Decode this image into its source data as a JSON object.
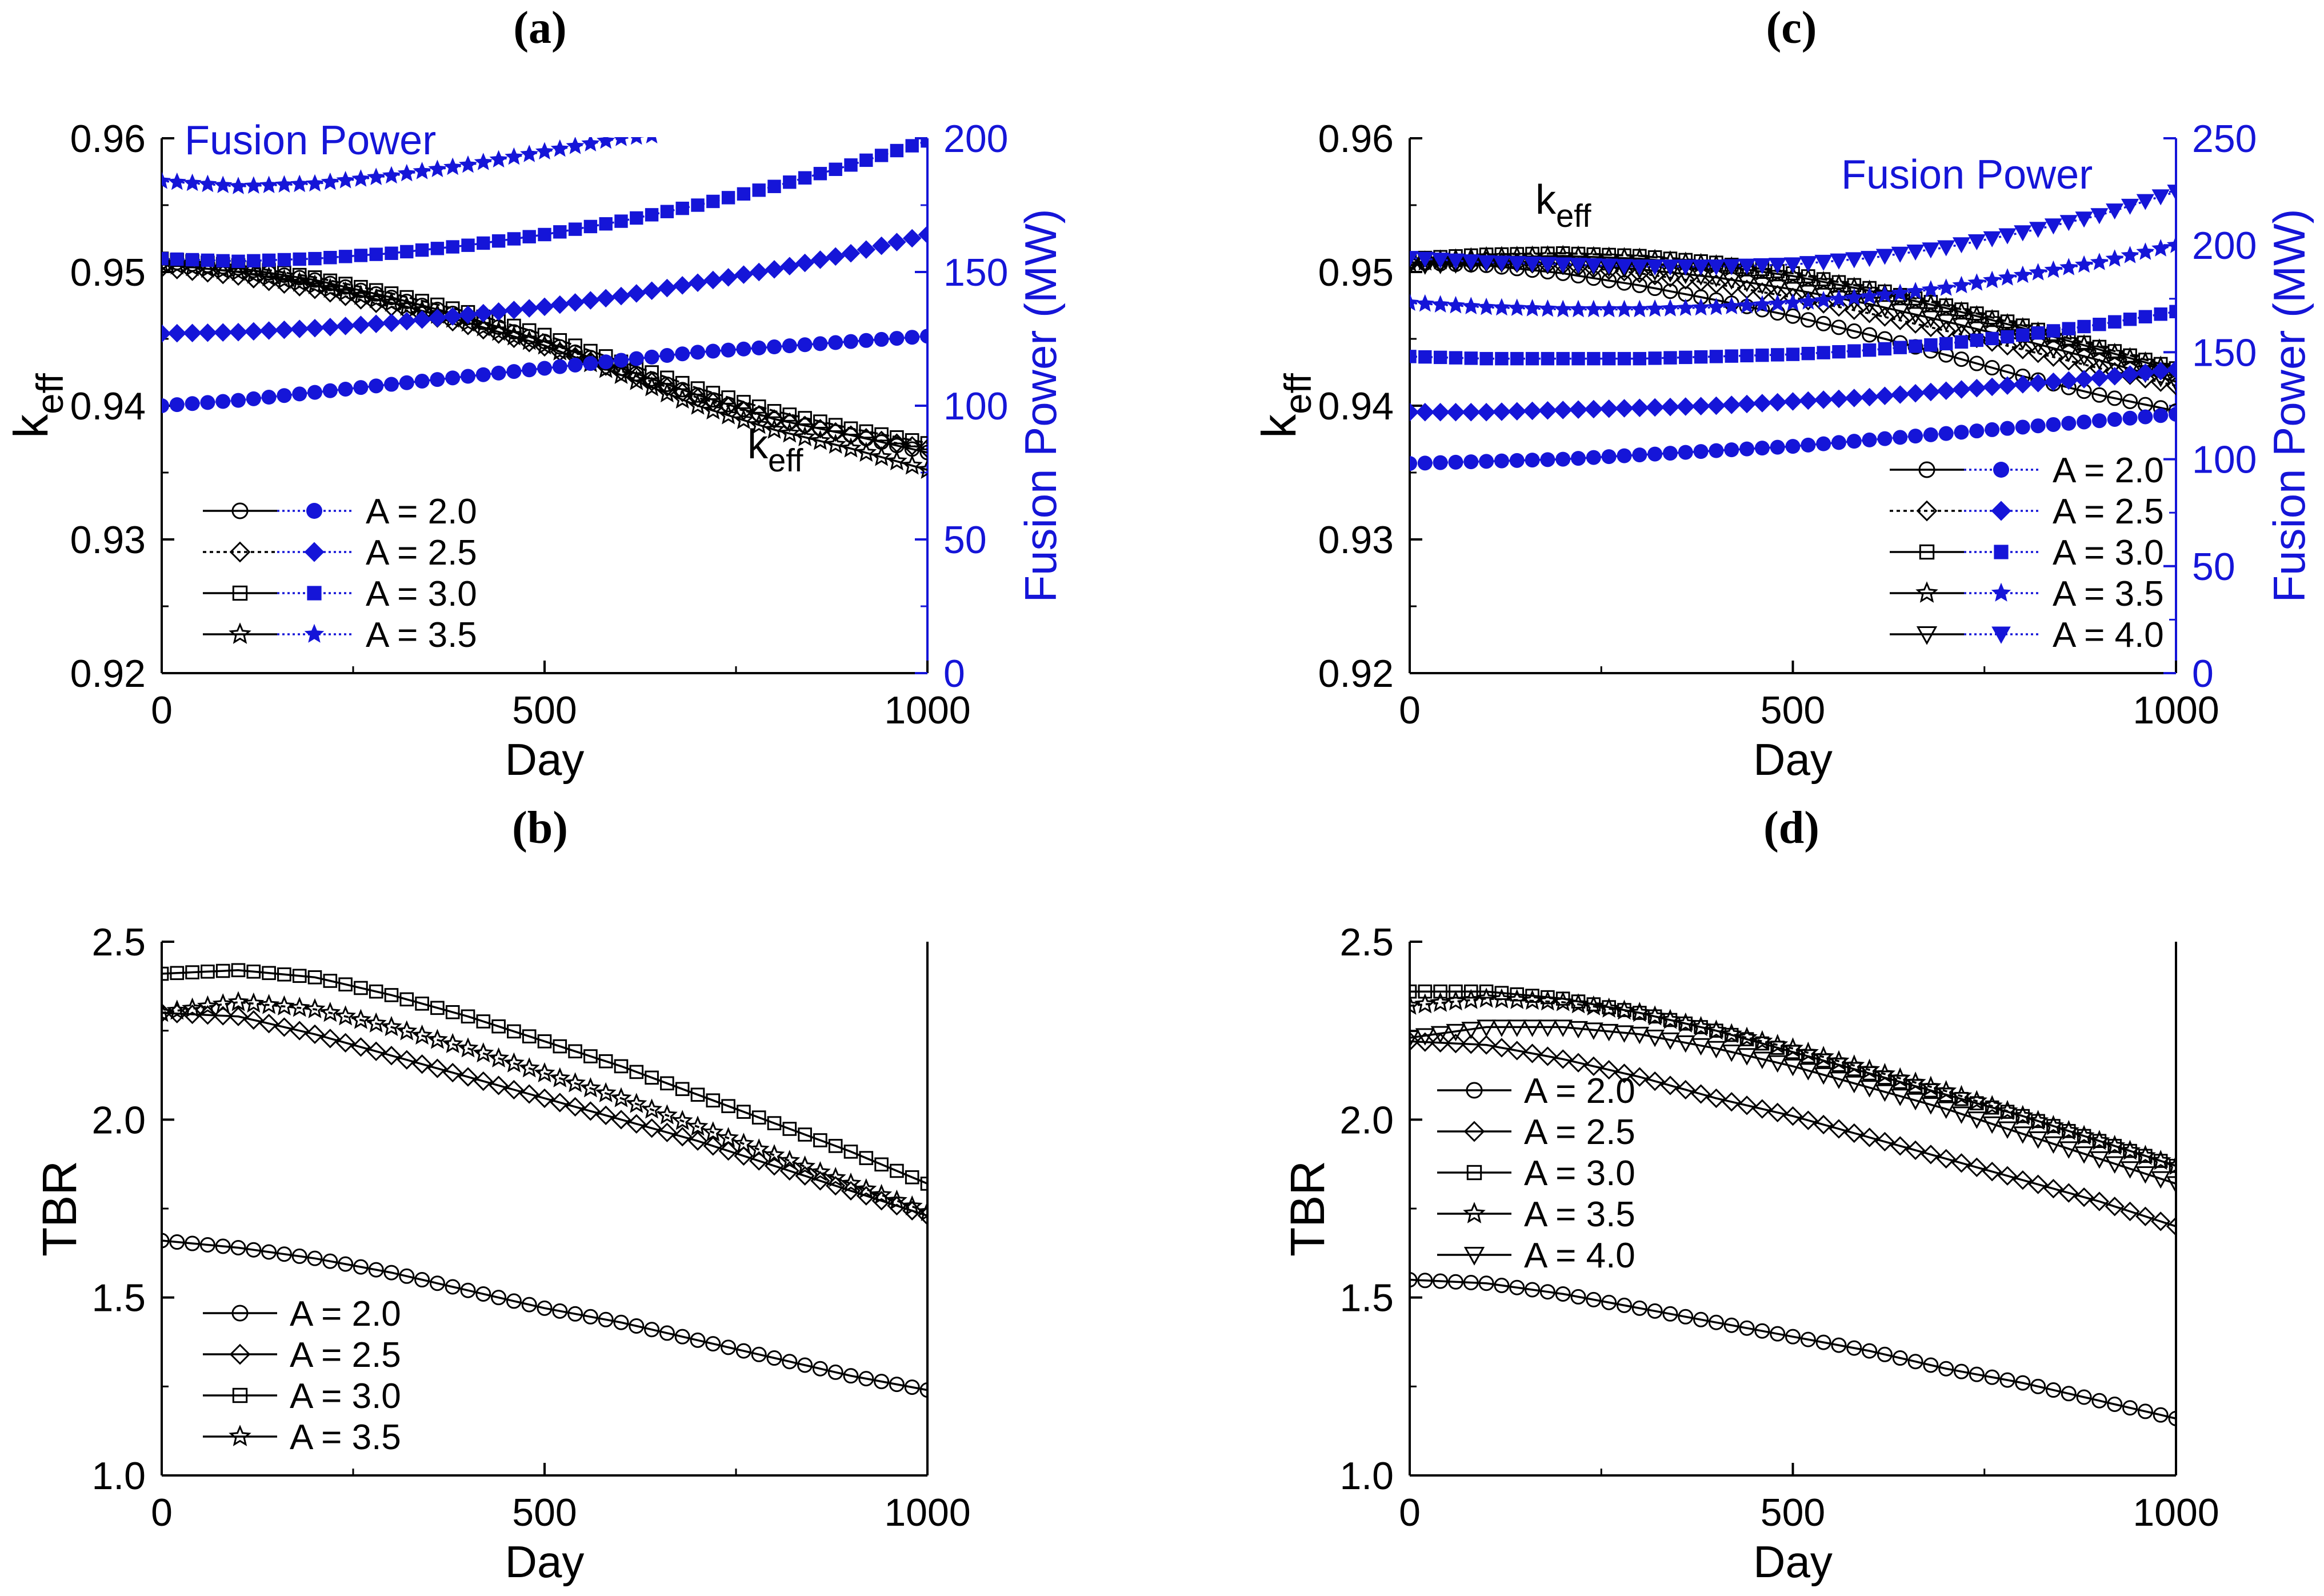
{
  "chart_data": [
    {
      "panel": "(a)",
      "type": "line",
      "dual_axis": true,
      "xlabel": "Day",
      "ylabel": "k",
      "ylabel_sub": "eff",
      "ylabel_right": "Fusion Power (MW)",
      "xlim": [
        0,
        1000
      ],
      "ylim": [
        0.92,
        0.96
      ],
      "ylim_right": [
        0,
        200
      ],
      "xticks": [
        "0",
        "500",
        "1000"
      ],
      "yticks": [
        "0.92",
        "0.93",
        "0.94",
        "0.95",
        "0.96"
      ],
      "yticks_right": [
        "0",
        "50",
        "100",
        "150",
        "200"
      ],
      "annotations": [
        {
          "text": "Fusion Power",
          "sub": "",
          "color": "#1515d8"
        },
        {
          "text": "k",
          "sub": "eff",
          "color": "#000000"
        }
      ],
      "legend": [
        "A = 2.0",
        "A = 2.5",
        "A = 3.0",
        "A = 3.5"
      ],
      "legend_position": "bottom-left",
      "series_left": [
        {
          "name": "A = 2.0",
          "marker": "circle",
          "x": [
            0,
            100,
            200,
            300,
            400,
            500,
            600,
            700,
            800,
            900,
            1000
          ],
          "y": [
            0.9508,
            0.9503,
            0.9494,
            0.9481,
            0.9466,
            0.9448,
            0.9428,
            0.9408,
            0.939,
            0.9378,
            0.9365
          ]
        },
        {
          "name": "A = 2.5",
          "marker": "diamond",
          "x": [
            0,
            100,
            200,
            300,
            400,
            500,
            600,
            700,
            800,
            900,
            1000
          ],
          "y": [
            0.9503,
            0.9497,
            0.9487,
            0.9474,
            0.946,
            0.9444,
            0.9426,
            0.9406,
            0.939,
            0.9378,
            0.9368
          ]
        },
        {
          "name": "A = 3.0",
          "marker": "square",
          "x": [
            0,
            100,
            200,
            300,
            400,
            500,
            600,
            700,
            800,
            900,
            1000
          ],
          "y": [
            0.951,
            0.9505,
            0.9496,
            0.9484,
            0.947,
            0.9453,
            0.9433,
            0.9413,
            0.9396,
            0.9383,
            0.9372
          ]
        },
        {
          "name": "A = 3.5",
          "marker": "star",
          "x": [
            0,
            100,
            200,
            300,
            400,
            500,
            600,
            700,
            800,
            900,
            1000
          ],
          "y": [
            0.9506,
            0.95,
            0.949,
            0.9477,
            0.9462,
            0.9445,
            0.9423,
            0.94,
            0.9382,
            0.9368,
            0.9352
          ]
        }
      ],
      "series_right": [
        {
          "name": "A = 2.0",
          "marker": "circle",
          "x": [
            0,
            100,
            200,
            300,
            400,
            500,
            600,
            700,
            800,
            900,
            1000
          ],
          "y": [
            100,
            102,
            105,
            108,
            111,
            114,
            117,
            120,
            122,
            124,
            126
          ]
        },
        {
          "name": "A = 2.5",
          "marker": "diamond",
          "x": [
            0,
            100,
            200,
            300,
            400,
            500,
            600,
            700,
            800,
            900,
            1000
          ],
          "y": [
            127,
            127.5,
            129,
            131,
            134,
            137,
            141,
            146,
            151,
            157,
            164
          ]
        },
        {
          "name": "A = 3.0",
          "marker": "square",
          "x": [
            0,
            100,
            200,
            300,
            400,
            500,
            600,
            700,
            800,
            900,
            1000
          ],
          "y": [
            155,
            154,
            155,
            157,
            160,
            164,
            169,
            175,
            182,
            190,
            199
          ]
        },
        {
          "name": "A = 3.5",
          "marker": "star",
          "x": [
            0,
            100,
            200,
            300,
            400,
            500,
            600,
            640
          ],
          "y": [
            184,
            182,
            183,
            186,
            190,
            195,
            200,
            201
          ]
        }
      ]
    },
    {
      "panel": "(b)",
      "type": "line",
      "dual_axis": false,
      "xlabel": "Day",
      "ylabel": "TBR",
      "ylabel_sub": "",
      "xlim": [
        0,
        1000
      ],
      "ylim": [
        1.0,
        2.5
      ],
      "xticks": [
        "0",
        "500",
        "1000"
      ],
      "yticks": [
        "1.0",
        "1.5",
        "2.0",
        "2.5"
      ],
      "legend": [
        "A = 2.0",
        "A = 2.5",
        "A = 3.0",
        "A = 3.5"
      ],
      "legend_position": "bottom-left",
      "series": [
        {
          "name": "A = 2.0",
          "marker": "circle",
          "x": [
            0,
            100,
            200,
            300,
            400,
            500,
            600,
            700,
            800,
            900,
            1000
          ],
          "y": [
            1.66,
            1.64,
            1.61,
            1.57,
            1.52,
            1.47,
            1.43,
            1.38,
            1.33,
            1.28,
            1.24
          ]
        },
        {
          "name": "A = 2.5",
          "marker": "diamond",
          "x": [
            0,
            100,
            200,
            300,
            400,
            500,
            600,
            700,
            800,
            900,
            1000
          ],
          "y": [
            2.3,
            2.29,
            2.24,
            2.18,
            2.12,
            2.06,
            2.0,
            1.94,
            1.87,
            1.8,
            1.73
          ]
        },
        {
          "name": "A = 3.0",
          "marker": "square",
          "x": [
            0,
            100,
            200,
            300,
            400,
            500,
            600,
            700,
            800,
            900,
            1000
          ],
          "y": [
            2.41,
            2.42,
            2.4,
            2.35,
            2.29,
            2.22,
            2.15,
            2.07,
            1.99,
            1.91,
            1.82
          ]
        },
        {
          "name": "A = 3.5",
          "marker": "star",
          "x": [
            0,
            100,
            200,
            300,
            400,
            500,
            600,
            700,
            800,
            900,
            1000
          ],
          "y": [
            2.3,
            2.33,
            2.31,
            2.26,
            2.2,
            2.13,
            2.06,
            1.98,
            1.9,
            1.82,
            1.74
          ]
        }
      ]
    },
    {
      "panel": "(c)",
      "type": "line",
      "dual_axis": true,
      "xlabel": "Day",
      "ylabel": "k",
      "ylabel_sub": "eff",
      "ylabel_right": "Fusion Power (MW)",
      "xlim": [
        0,
        1000
      ],
      "ylim": [
        0.92,
        0.96
      ],
      "ylim_right": [
        0,
        250
      ],
      "xticks": [
        "0",
        "500",
        "1000"
      ],
      "yticks": [
        "0.92",
        "0.93",
        "0.94",
        "0.95",
        "0.96"
      ],
      "yticks_right": [
        "0",
        "50",
        "100",
        "150",
        "200",
        "250"
      ],
      "annotations": [
        {
          "text": "Fusion Power",
          "sub": "",
          "color": "#1515d8"
        },
        {
          "text": "k",
          "sub": "eff",
          "color": "#000000"
        }
      ],
      "legend": [
        "A = 2.0",
        "A = 2.5",
        "A = 3.0",
        "A = 3.5",
        "A = 4.0"
      ],
      "legend_position": "bottom-right",
      "series_left": [
        {
          "name": "A = 2.0",
          "marker": "circle",
          "x": [
            0,
            100,
            200,
            300,
            400,
            500,
            600,
            700,
            800,
            900,
            1000
          ],
          "y": [
            0.9507,
            0.9505,
            0.9499,
            0.949,
            0.9479,
            0.9467,
            0.9453,
            0.9438,
            0.9422,
            0.9408,
            0.9396
          ]
        },
        {
          "name": "A = 2.5",
          "marker": "diamond",
          "x": [
            0,
            100,
            200,
            300,
            400,
            500,
            600,
            700,
            800,
            900,
            1000
          ],
          "y": [
            0.9508,
            0.9508,
            0.9505,
            0.9499,
            0.9491,
            0.9481,
            0.9469,
            0.9456,
            0.9442,
            0.9428,
            0.9415
          ]
        },
        {
          "name": "A = 3.0",
          "marker": "square",
          "x": [
            0,
            100,
            200,
            300,
            400,
            500,
            600,
            700,
            800,
            900,
            1000
          ],
          "y": [
            0.951,
            0.9513,
            0.9514,
            0.9512,
            0.9507,
            0.9499,
            0.9488,
            0.9475,
            0.946,
            0.9444,
            0.9428
          ]
        },
        {
          "name": "A = 3.5",
          "marker": "star",
          "x": [
            0,
            100,
            200,
            300,
            400,
            500,
            600,
            700,
            800,
            900,
            1000
          ],
          "y": [
            0.9507,
            0.9511,
            0.9512,
            0.951,
            0.9505,
            0.9497,
            0.9486,
            0.9473,
            0.9458,
            0.9442,
            0.9426
          ]
        },
        {
          "name": "A = 4.0",
          "marker": "triangle-down",
          "x": [
            0,
            100,
            200,
            300,
            400,
            500,
            600,
            700,
            800,
            900,
            1000
          ],
          "y": [
            0.9505,
            0.9507,
            0.9506,
            0.9502,
            0.9496,
            0.9487,
            0.9476,
            0.9463,
            0.9449,
            0.9434,
            0.9418
          ]
        }
      ],
      "series_right": [
        {
          "name": "A = 2.0",
          "marker": "circle",
          "x": [
            0,
            100,
            200,
            300,
            400,
            500,
            600,
            700,
            800,
            900,
            1000
          ],
          "y": [
            98,
            99,
            100,
            102,
            104,
            106,
            109,
            112,
            115,
            118,
            121
          ]
        },
        {
          "name": "A = 2.5",
          "marker": "diamond",
          "x": [
            0,
            100,
            200,
            300,
            400,
            500,
            600,
            700,
            800,
            900,
            1000
          ],
          "y": [
            122,
            122,
            123,
            124,
            125,
            127,
            129,
            132,
            135,
            138,
            142
          ]
        },
        {
          "name": "A = 3.0",
          "marker": "square",
          "x": [
            0,
            100,
            200,
            300,
            400,
            500,
            600,
            700,
            800,
            900,
            1000
          ],
          "y": [
            148,
            147,
            147,
            147,
            148,
            149,
            151,
            154,
            158,
            163,
            169
          ]
        },
        {
          "name": "A = 3.5",
          "marker": "star",
          "x": [
            0,
            100,
            200,
            300,
            400,
            500,
            600,
            700,
            800,
            900,
            1000
          ],
          "y": [
            173,
            171,
            170,
            170,
            171,
            173,
            176,
            180,
            186,
            192,
            200
          ]
        },
        {
          "name": "A = 4.0",
          "marker": "triangle-down",
          "x": [
            0,
            100,
            200,
            300,
            400,
            500,
            600,
            700,
            800,
            900,
            1000
          ],
          "y": [
            194,
            192,
            191,
            190,
            190,
            191,
            194,
            199,
            206,
            214,
            225
          ]
        }
      ]
    },
    {
      "panel": "(d)",
      "type": "line",
      "dual_axis": false,
      "xlabel": "Day",
      "ylabel": "TBR",
      "ylabel_sub": "",
      "xlim": [
        0,
        1000
      ],
      "ylim": [
        1.0,
        2.5
      ],
      "xticks": [
        "0",
        "500",
        "1000"
      ],
      "yticks": [
        "1.0",
        "1.5",
        "2.0",
        "2.5"
      ],
      "legend": [
        "A = 2.0",
        "A = 2.5",
        "A = 3.0",
        "A = 3.5",
        "A = 4.0"
      ],
      "legend_position": "center-left",
      "series": [
        {
          "name": "A = 2.0",
          "marker": "circle",
          "x": [
            0,
            100,
            200,
            300,
            400,
            500,
            600,
            700,
            800,
            900,
            1000
          ],
          "y": [
            1.55,
            1.54,
            1.51,
            1.47,
            1.43,
            1.39,
            1.35,
            1.3,
            1.26,
            1.21,
            1.16
          ]
        },
        {
          "name": "A = 2.5",
          "marker": "diamond",
          "x": [
            0,
            100,
            200,
            300,
            400,
            500,
            600,
            700,
            800,
            900,
            1000
          ],
          "y": [
            2.22,
            2.21,
            2.17,
            2.12,
            2.06,
            2.01,
            1.95,
            1.89,
            1.83,
            1.77,
            1.7
          ]
        },
        {
          "name": "A = 3.0",
          "marker": "square",
          "x": [
            0,
            100,
            200,
            300,
            400,
            500,
            600,
            700,
            800,
            900,
            1000
          ],
          "y": [
            2.36,
            2.36,
            2.34,
            2.3,
            2.25,
            2.19,
            2.13,
            2.07,
            2.01,
            1.94,
            1.87
          ]
        },
        {
          "name": "A = 3.5",
          "marker": "star",
          "x": [
            0,
            100,
            200,
            300,
            400,
            500,
            600,
            700,
            800,
            900,
            1000
          ],
          "y": [
            2.32,
            2.34,
            2.33,
            2.3,
            2.25,
            2.2,
            2.14,
            2.08,
            2.01,
            1.94,
            1.87
          ]
        },
        {
          "name": "A = 4.0",
          "marker": "triangle-down",
          "x": [
            0,
            100,
            200,
            300,
            400,
            500,
            600,
            700,
            800,
            900,
            1000
          ],
          "y": [
            2.23,
            2.26,
            2.26,
            2.24,
            2.2,
            2.15,
            2.09,
            2.03,
            1.96,
            1.89,
            1.82
          ]
        }
      ]
    }
  ]
}
